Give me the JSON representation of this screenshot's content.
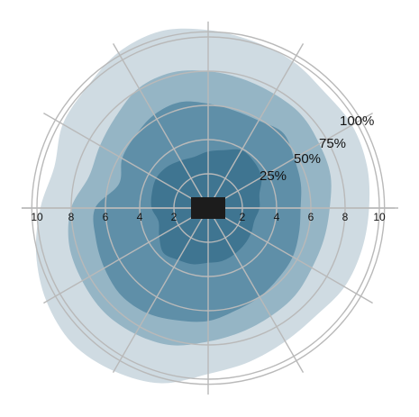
{
  "chart_data": {
    "type": "area",
    "subtype": "polar-percentile-bands",
    "title": "",
    "xlabel": "",
    "ylabel": "",
    "radial_range": [
      0,
      10
    ],
    "grid": true,
    "spoke_count": 12,
    "ring_values": [
      2,
      4,
      6,
      8,
      10
    ],
    "x_tick_labels_left": [
      "10",
      "8",
      "6",
      "4",
      "2"
    ],
    "x_tick_labels_right": [
      "2",
      "4",
      "6",
      "8",
      "10"
    ],
    "colors": {
      "band_100": "#cfdbe2",
      "band_75": "#95b5c5",
      "band_50": "#5f8fa8",
      "band_25": "#3f7591",
      "grid": "#b9b9b9",
      "center": "#1c1c1c"
    },
    "series": [
      {
        "name": "100%",
        "values": [
          9.4,
          9.6,
          9.7,
          9.6,
          9.9,
          10.1,
          10.4,
          10.7,
          10.5,
          10.0,
          9.8,
          9.3,
          9.8,
          10.4,
          10.9,
          11.2,
          11.0,
          10.6,
          9.7,
          9.3,
          9.0,
          8.9,
          9.2,
          9.3
        ]
      },
      {
        "name": "75%",
        "values": [
          7.1,
          7.4,
          7.5,
          7.7,
          7.7,
          7.8,
          8.0,
          8.2,
          8.1,
          7.6,
          7.3,
          7.2,
          8.0,
          8.4,
          8.5,
          8.6,
          8.5,
          8.3,
          7.8,
          7.5,
          7.3,
          7.2,
          7.0,
          7.0
        ]
      },
      {
        "name": "50%",
        "values": [
          5.4,
          5.6,
          5.8,
          6.2,
          5.9,
          5.9,
          6.1,
          6.4,
          6.3,
          6.0,
          5.8,
          5.4,
          6.6,
          6.8,
          7.0,
          7.2,
          7.1,
          6.8,
          6.6,
          6.2,
          6.0,
          5.8,
          5.7,
          5.5
        ]
      },
      {
        "name": "25%",
        "values": [
          3.0,
          3.1,
          3.6,
          3.8,
          3.9,
          3.5,
          3.3,
          3.1,
          3.2,
          3.4,
          3.5,
          3.4,
          3.3,
          3.0,
          3.3,
          3.7,
          3.5,
          3.4,
          3.2,
          3.2,
          3.1,
          3.0,
          2.9,
          2.8
        ]
      }
    ],
    "percentile_labels": [
      "100%",
      "75%",
      "50%",
      "25%"
    ]
  }
}
